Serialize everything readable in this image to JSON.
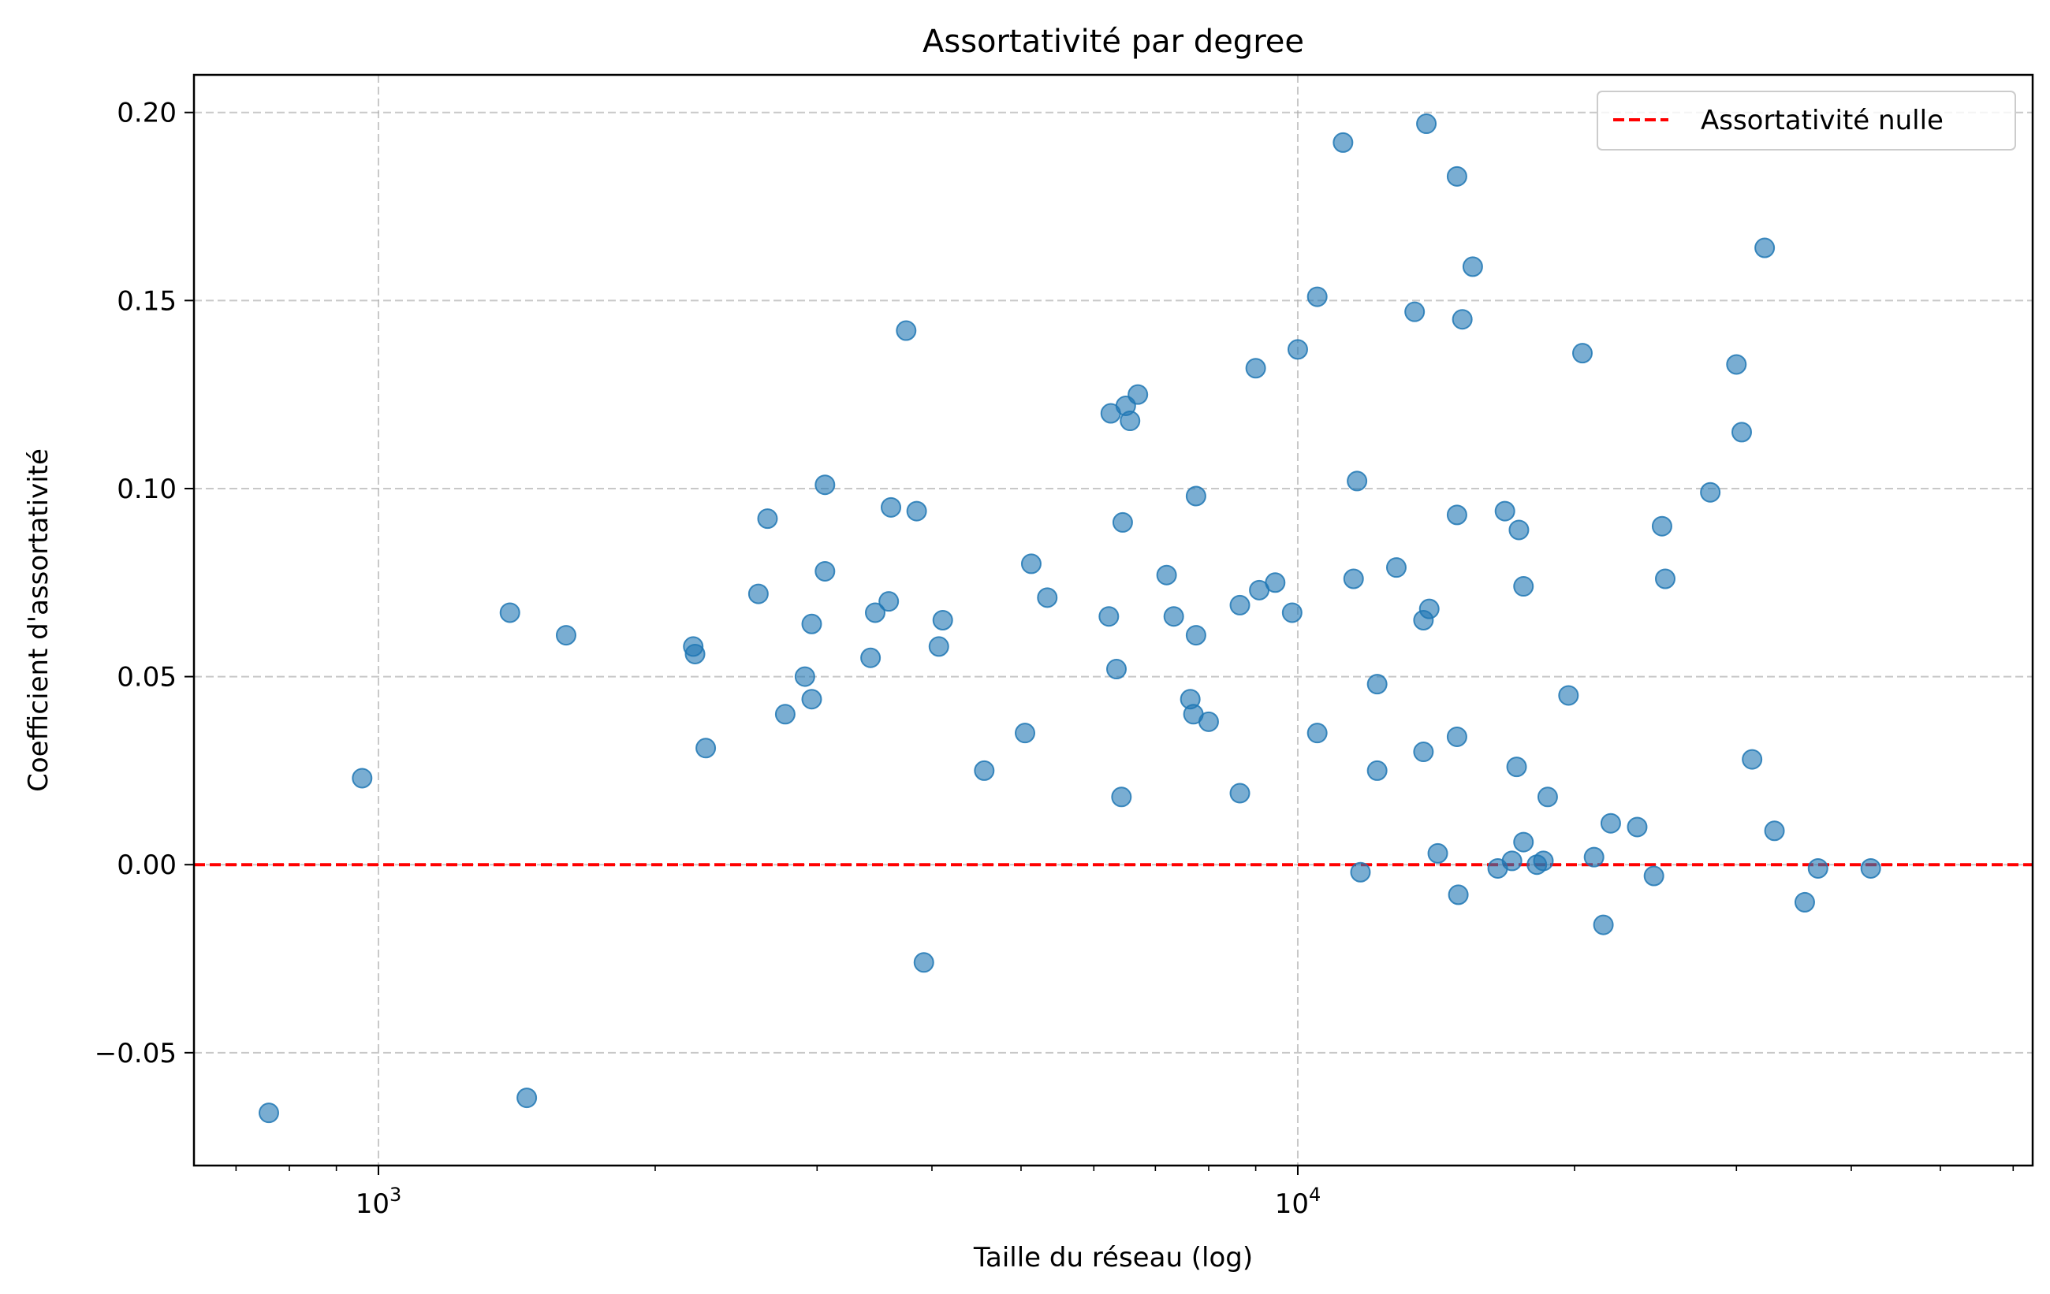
{
  "chart_data": {
    "type": "scatter",
    "title": "Assortativité par degree",
    "xlabel": "Taille du réseau (log)",
    "ylabel": "Coefficient d'assortativité",
    "x_scale": "log",
    "xlim": [
      630,
      63000
    ],
    "ylim": [
      -0.08,
      0.21
    ],
    "grid": true,
    "x_major_ticks": [
      1000,
      10000
    ],
    "x_tick_labels": [
      {
        "base": "10",
        "exp": "3"
      },
      {
        "base": "10",
        "exp": "4"
      }
    ],
    "y_ticks": [
      -0.05,
      0.0,
      0.05,
      0.1,
      0.15,
      0.2
    ],
    "y_tick_labels": [
      "−0.05",
      "0.00",
      "0.05",
      "0.10",
      "0.15",
      "0.20"
    ],
    "point_color": "#1f77b4",
    "reference_line": {
      "y": 0,
      "color": "#ff0000",
      "style": "dashed",
      "label": "Assortativité nulle"
    },
    "legend_position": "top-right",
    "points": [
      {
        "x": 760,
        "y": -0.066
      },
      {
        "x": 960,
        "y": 0.023
      },
      {
        "x": 1390,
        "y": 0.067
      },
      {
        "x": 1450,
        "y": -0.062
      },
      {
        "x": 1600,
        "y": 0.061
      },
      {
        "x": 2200,
        "y": 0.058
      },
      {
        "x": 2210,
        "y": 0.056
      },
      {
        "x": 2270,
        "y": 0.031
      },
      {
        "x": 2590,
        "y": 0.072
      },
      {
        "x": 2650,
        "y": 0.092
      },
      {
        "x": 2770,
        "y": 0.04
      },
      {
        "x": 2910,
        "y": 0.05
      },
      {
        "x": 2960,
        "y": 0.044
      },
      {
        "x": 2960,
        "y": 0.064
      },
      {
        "x": 3060,
        "y": 0.101
      },
      {
        "x": 3060,
        "y": 0.078
      },
      {
        "x": 3430,
        "y": 0.055
      },
      {
        "x": 3470,
        "y": 0.067
      },
      {
        "x": 3590,
        "y": 0.07
      },
      {
        "x": 3610,
        "y": 0.095
      },
      {
        "x": 3750,
        "y": 0.142
      },
      {
        "x": 3850,
        "y": 0.094
      },
      {
        "x": 3920,
        "y": -0.026
      },
      {
        "x": 4070,
        "y": 0.058
      },
      {
        "x": 4110,
        "y": 0.065
      },
      {
        "x": 4560,
        "y": 0.025
      },
      {
        "x": 5050,
        "y": 0.035
      },
      {
        "x": 5130,
        "y": 0.08
      },
      {
        "x": 5340,
        "y": 0.071
      },
      {
        "x": 6230,
        "y": 0.066
      },
      {
        "x": 6260,
        "y": 0.12
      },
      {
        "x": 6350,
        "y": 0.052
      },
      {
        "x": 6430,
        "y": 0.018
      },
      {
        "x": 6450,
        "y": 0.091
      },
      {
        "x": 6500,
        "y": 0.122
      },
      {
        "x": 6570,
        "y": 0.118
      },
      {
        "x": 6700,
        "y": 0.125
      },
      {
        "x": 7200,
        "y": 0.077
      },
      {
        "x": 7330,
        "y": 0.066
      },
      {
        "x": 7640,
        "y": 0.044
      },
      {
        "x": 7700,
        "y": 0.04
      },
      {
        "x": 7750,
        "y": 0.098
      },
      {
        "x": 7750,
        "y": 0.061
      },
      {
        "x": 8000,
        "y": 0.038
      },
      {
        "x": 8650,
        "y": 0.069
      },
      {
        "x": 8650,
        "y": 0.019
      },
      {
        "x": 9000,
        "y": 0.132
      },
      {
        "x": 9080,
        "y": 0.073
      },
      {
        "x": 9450,
        "y": 0.075
      },
      {
        "x": 9860,
        "y": 0.067
      },
      {
        "x": 10000,
        "y": 0.137
      },
      {
        "x": 10500,
        "y": 0.151
      },
      {
        "x": 10500,
        "y": 0.035
      },
      {
        "x": 11200,
        "y": 0.192
      },
      {
        "x": 11500,
        "y": 0.076
      },
      {
        "x": 11600,
        "y": 0.102
      },
      {
        "x": 11700,
        "y": -0.002
      },
      {
        "x": 12200,
        "y": 0.048
      },
      {
        "x": 12200,
        "y": 0.025
      },
      {
        "x": 12800,
        "y": 0.079
      },
      {
        "x": 13400,
        "y": 0.147
      },
      {
        "x": 13700,
        "y": 0.065
      },
      {
        "x": 13700,
        "y": 0.03
      },
      {
        "x": 13800,
        "y": 0.197
      },
      {
        "x": 13900,
        "y": 0.068
      },
      {
        "x": 14200,
        "y": 0.003
      },
      {
        "x": 14900,
        "y": 0.093
      },
      {
        "x": 14900,
        "y": 0.183
      },
      {
        "x": 14900,
        "y": 0.034
      },
      {
        "x": 14950,
        "y": -0.008
      },
      {
        "x": 15100,
        "y": 0.145
      },
      {
        "x": 15500,
        "y": 0.159
      },
      {
        "x": 16500,
        "y": -0.001
      },
      {
        "x": 16800,
        "y": 0.094
      },
      {
        "x": 17100,
        "y": 0.001
      },
      {
        "x": 17300,
        "y": 0.026
      },
      {
        "x": 17400,
        "y": 0.089
      },
      {
        "x": 17600,
        "y": 0.074
      },
      {
        "x": 17600,
        "y": 0.006
      },
      {
        "x": 18200,
        "y": 0.0
      },
      {
        "x": 18500,
        "y": 0.001
      },
      {
        "x": 18700,
        "y": 0.018
      },
      {
        "x": 19700,
        "y": 0.045
      },
      {
        "x": 20400,
        "y": 0.136
      },
      {
        "x": 21000,
        "y": 0.002
      },
      {
        "x": 21500,
        "y": -0.016
      },
      {
        "x": 21900,
        "y": 0.011
      },
      {
        "x": 23400,
        "y": 0.01
      },
      {
        "x": 24400,
        "y": -0.003
      },
      {
        "x": 24900,
        "y": 0.09
      },
      {
        "x": 25100,
        "y": 0.076
      },
      {
        "x": 28100,
        "y": 0.099
      },
      {
        "x": 30000,
        "y": 0.133
      },
      {
        "x": 30400,
        "y": 0.115
      },
      {
        "x": 31200,
        "y": 0.028
      },
      {
        "x": 32200,
        "y": 0.164
      },
      {
        "x": 33000,
        "y": 0.009
      },
      {
        "x": 35600,
        "y": -0.01
      },
      {
        "x": 36800,
        "y": -0.001
      },
      {
        "x": 42000,
        "y": -0.001
      }
    ]
  }
}
